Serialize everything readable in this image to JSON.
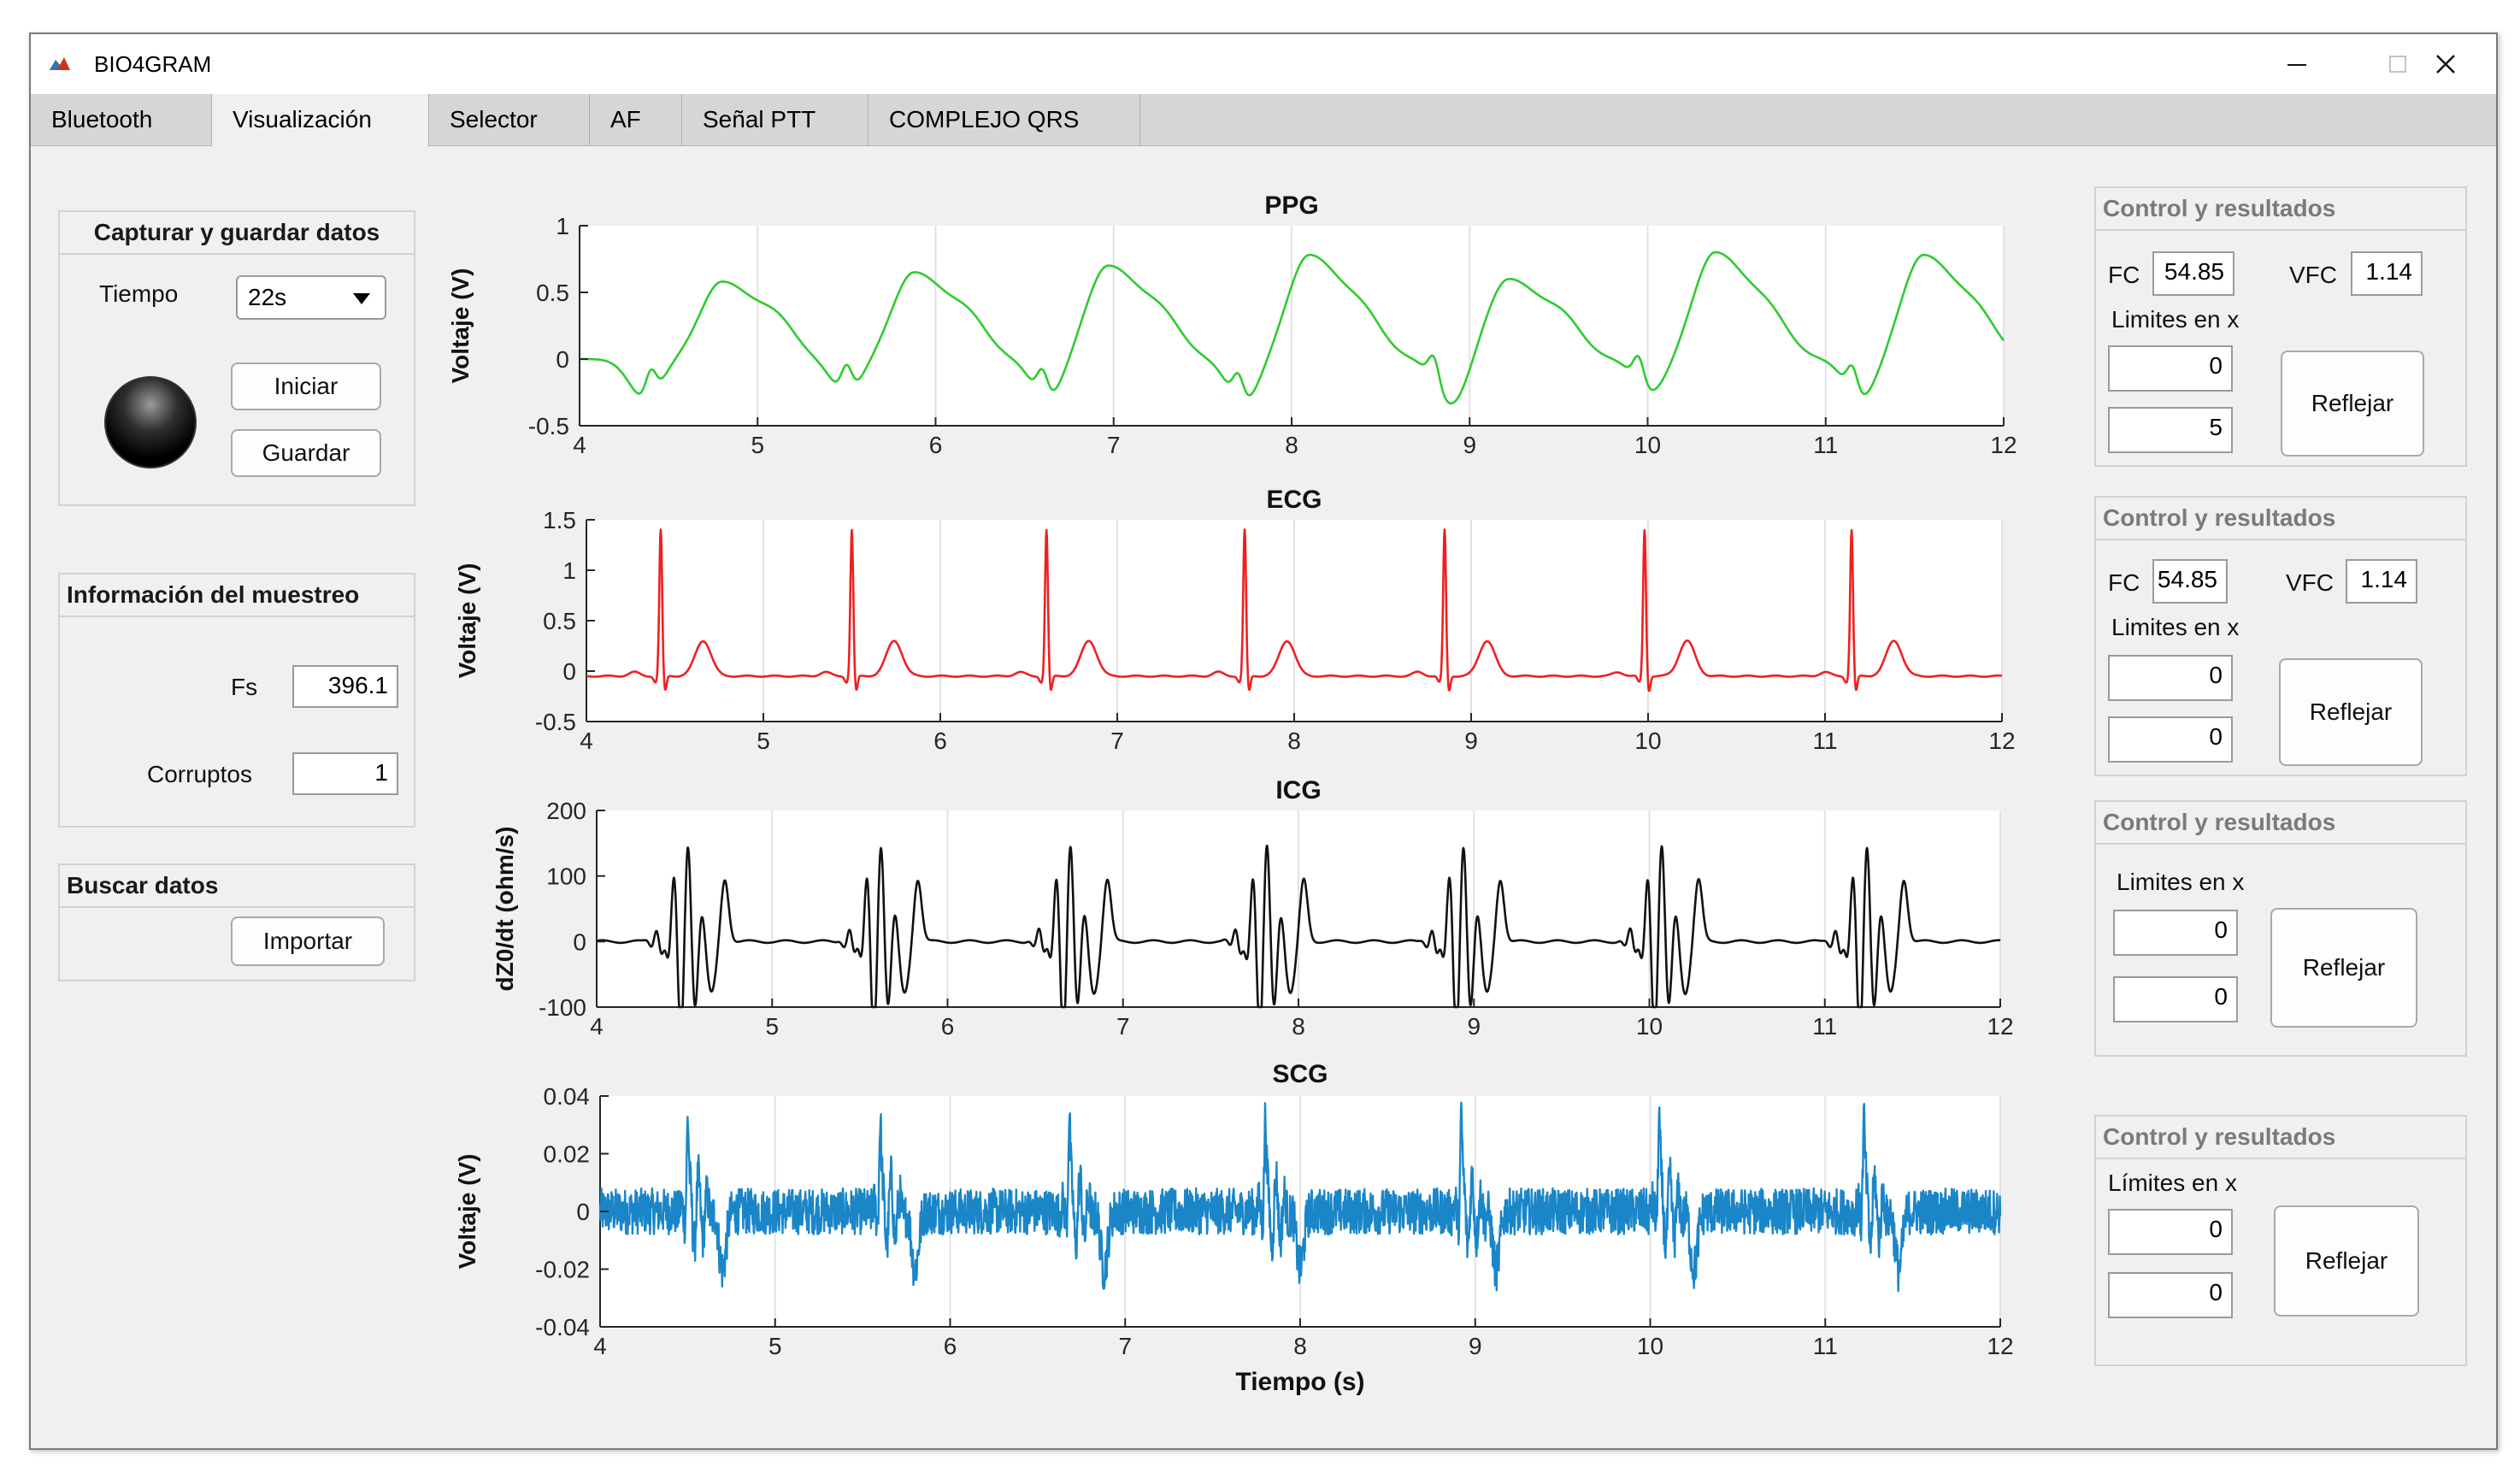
{
  "window": {
    "title": "BIO4GRAM",
    "controls": [
      "minimize",
      "maximize",
      "close"
    ]
  },
  "tabs": [
    {
      "label": "Bluetooth",
      "active": false
    },
    {
      "label": "Visualización",
      "active": true
    },
    {
      "label": "Selector",
      "active": false
    },
    {
      "label": "AF",
      "active": false
    },
    {
      "label": "Señal PTT",
      "active": false
    },
    {
      "label": "COMPLEJO QRS",
      "active": false
    }
  ],
  "capture": {
    "title": "Capturar y guardar datos",
    "time_label": "Tiempo",
    "time_value": "22s",
    "start_label": "Iniciar",
    "save_label": "Guardar",
    "lamp_state": "off"
  },
  "sampling": {
    "title": "Información del muestreo",
    "fs_label": "Fs",
    "fs_value": "396.1",
    "corrupt_label": "Corruptos",
    "corrupt_value": "1"
  },
  "search": {
    "title": "Buscar datos",
    "import_label": "Importar"
  },
  "controls": [
    {
      "title": "Control y resultados",
      "fc_label": "FC",
      "fc_value": "54.85",
      "vfc_label": "VFC",
      "vfc_value": "1.14",
      "limits_label": "Limites en x",
      "xmin": "0",
      "xmax": "5",
      "button": "Reflejar"
    },
    {
      "title": "Control y resultados",
      "fc_label": "FC",
      "fc_value": "54.85",
      "vfc_label": "VFC",
      "vfc_value": "1.14",
      "limits_label": "Limites en x",
      "xmin": "0",
      "xmax": "0",
      "button": "Reflejar"
    },
    {
      "title": "Control y resultados",
      "limits_label": "Limites en x",
      "xmin": "0",
      "xmax": "0",
      "button": "Reflejar"
    },
    {
      "title": "Control y resultados",
      "limits_label": "Límites en x",
      "xmin": "0",
      "xmax": "0",
      "button": "Reflejar"
    }
  ],
  "chart_data": [
    {
      "type": "line",
      "title": "PPG",
      "xlabel": "",
      "ylabel": "Voltaje (V)",
      "xlim": [
        4,
        12
      ],
      "ylim": [
        -0.5,
        1
      ],
      "yticks": [
        "1",
        "0.5",
        "0",
        "-0.5"
      ],
      "xticks": [
        "4",
        "5",
        "6",
        "7",
        "8",
        "9",
        "10",
        "11",
        "12"
      ],
      "grid": "x",
      "color": "#2ecc2e",
      "beat_times": [
        4.4,
        5.5,
        6.6,
        7.7,
        8.8,
        9.95,
        11.15
      ],
      "peaks": [
        [
          4.8,
          0.58
        ],
        [
          5.88,
          0.65
        ],
        [
          6.97,
          0.7
        ],
        [
          8.1,
          0.78
        ],
        [
          9.22,
          0.6
        ],
        [
          10.38,
          0.8
        ],
        [
          11.55,
          0.78
        ]
      ],
      "troughs": [
        [
          4.32,
          -0.25
        ],
        [
          5.45,
          -0.2
        ],
        [
          6.58,
          -0.25
        ],
        [
          7.68,
          -0.28
        ],
        [
          8.85,
          -0.3
        ],
        [
          9.97,
          -0.2
        ],
        [
          11.15,
          -0.25
        ]
      ]
    },
    {
      "type": "line",
      "title": "ECG",
      "xlabel": "",
      "ylabel": "Voltaje (V)",
      "xlim": [
        4,
        12
      ],
      "ylim": [
        -0.5,
        1.5
      ],
      "yticks": [
        "1.5",
        "1",
        "0.5",
        "0",
        "-0.5"
      ],
      "xticks": [
        "4",
        "5",
        "6",
        "7",
        "8",
        "9",
        "10",
        "11",
        "12"
      ],
      "grid": "x",
      "color": "#ee2020",
      "r_peaks": [
        4.42,
        5.5,
        6.6,
        7.72,
        8.85,
        9.98,
        11.15
      ],
      "r_amplitude": 1.45,
      "t_amplitude": 0.35,
      "baseline": -0.05
    },
    {
      "type": "line",
      "title": "ICG",
      "xlabel": "",
      "ylabel": "dZ0/dt (ohm/s)",
      "xlim": [
        4,
        12
      ],
      "ylim": [
        -100,
        200
      ],
      "yticks": [
        "200",
        "100",
        "0",
        "-100"
      ],
      "xticks": [
        "4",
        "5",
        "6",
        "7",
        "8",
        "9",
        "10",
        "11",
        "12"
      ],
      "grid": "x",
      "color": "#111111",
      "complex_times": [
        4.5,
        5.6,
        6.68,
        7.8,
        8.92,
        10.05,
        11.22
      ],
      "amplitude": 160
    },
    {
      "type": "line",
      "title": "SCG",
      "xlabel": "Tiempo (s)",
      "ylabel": "Voltaje (V)",
      "xlim": [
        4,
        12
      ],
      "ylim": [
        -0.04,
        0.04
      ],
      "yticks": [
        "0.04",
        "0.02",
        "0",
        "-0.02",
        "-0.04"
      ],
      "xticks": [
        "4",
        "5",
        "6",
        "7",
        "8",
        "9",
        "10",
        "11",
        "12"
      ],
      "grid": "x",
      "color": "#1a86c8",
      "beat_times": [
        4.5,
        5.6,
        6.68,
        7.8,
        8.92,
        10.05,
        11.22
      ],
      "noise_amplitude": 0.008,
      "spike_amplitude": 0.035
    }
  ]
}
